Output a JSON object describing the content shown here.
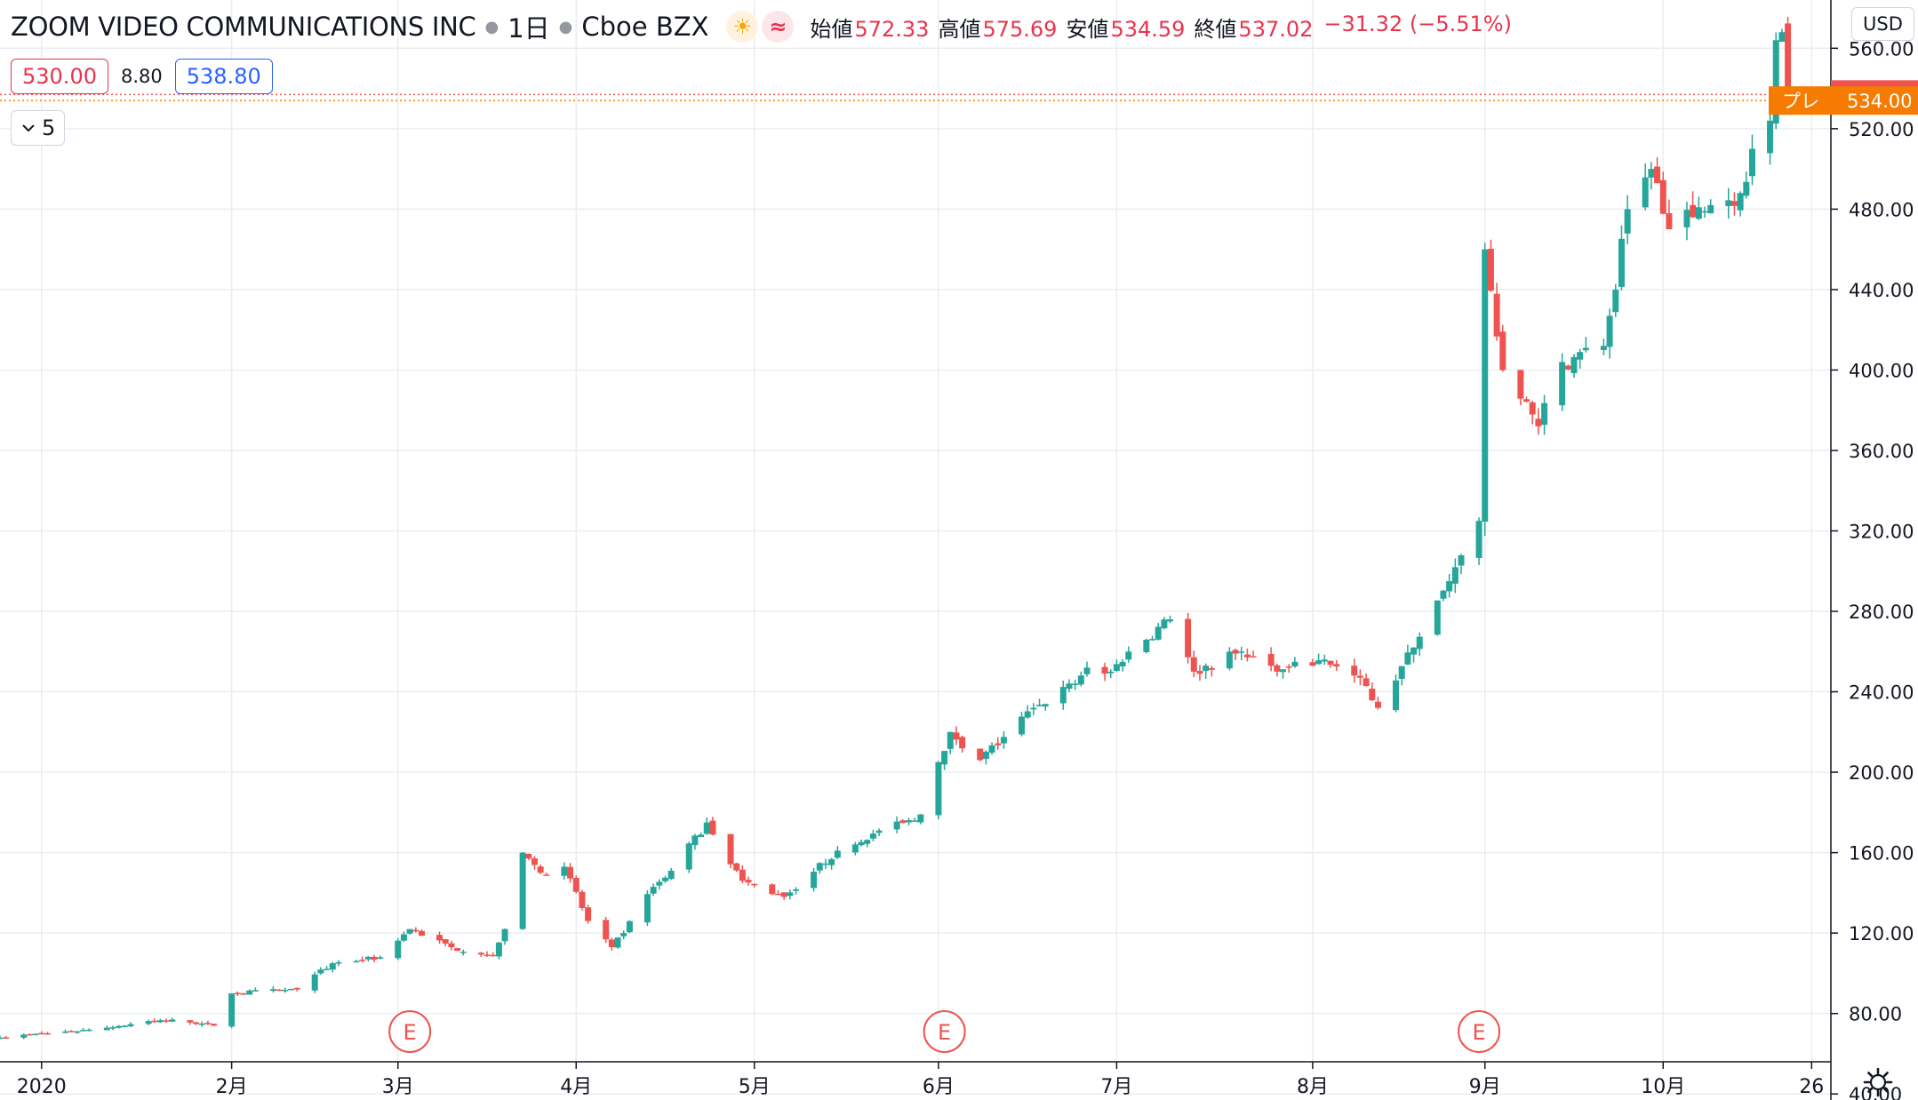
{
  "header": {
    "symbol": "ZOOM VIDEO COMMUNICATIONS INC",
    "interval": "1日",
    "exchange": "Cboe BZX",
    "ohlc": [
      {
        "label": "始値",
        "value": "572.33"
      },
      {
        "label": "高値",
        "value": "575.69"
      },
      {
        "label": "安値",
        "value": "534.59"
      },
      {
        "label": "終値",
        "value": "537.02"
      }
    ],
    "change": "−31.32 (−5.51%)"
  },
  "quote": {
    "bid": "530.00",
    "spread": "8.80",
    "ask": "538.80"
  },
  "indicator_toggle": "5",
  "currency": "USD",
  "colors": {
    "up": "#26a69a",
    "down": "#ef5350",
    "accent": "#f57c00",
    "grid": "#e9eef2"
  },
  "chart_data": {
    "type": "candlestick",
    "ylim": [
      37,
      584
    ],
    "y_ticks": [
      40,
      80,
      120,
      160,
      200,
      240,
      280,
      320,
      360,
      400,
      440,
      480,
      520,
      560
    ],
    "y_tick_labels": [
      "40.00",
      "80.00",
      "120.00",
      "160.00",
      "200.00",
      "240.00",
      "280.00",
      "320.00",
      "360.00",
      "400.00",
      "440.00",
      "480.00",
      "520.00",
      "560.00"
    ],
    "x_range": [
      "2019-12-26",
      "2020-10-27"
    ],
    "x_ticks": [
      {
        "date": "2020-01-02",
        "label": "2020"
      },
      {
        "date": "2020-02-03",
        "label": "2月"
      },
      {
        "date": "2020-03-02",
        "label": "3月"
      },
      {
        "date": "2020-04-01",
        "label": "4月"
      },
      {
        "date": "2020-05-01",
        "label": "5月"
      },
      {
        "date": "2020-06-01",
        "label": "6月"
      },
      {
        "date": "2020-07-01",
        "label": "7月"
      },
      {
        "date": "2020-08-03",
        "label": "8月"
      },
      {
        "date": "2020-09-01",
        "label": "9月"
      },
      {
        "date": "2020-10-01",
        "label": "10月"
      },
      {
        "date": "2020-10-26",
        "label": "26"
      }
    ],
    "grid": true,
    "earnings_markers": [
      {
        "date": "2020-03-04",
        "label": "E"
      },
      {
        "date": "2020-06-02",
        "label": "E"
      },
      {
        "date": "2020-08-31",
        "label": "E"
      }
    ],
    "price_lines": [
      {
        "label": "",
        "value": "537.02",
        "price": 537.02,
        "color": "#ef5350"
      },
      {
        "label": "プレ",
        "value": "534.00",
        "price": 534.0,
        "color": "#f57c00"
      }
    ],
    "anchors": [
      [
        "2019-12-26",
        68
      ],
      [
        "2020-01-10",
        72
      ],
      [
        "2020-01-24",
        77
      ],
      [
        "2020-01-31",
        74
      ],
      [
        "2020-02-03",
        90
      ],
      [
        "2020-02-14",
        92
      ],
      [
        "2020-02-20",
        105
      ],
      [
        "2020-02-28",
        108
      ],
      [
        "2020-03-04",
        122
      ],
      [
        "2020-03-11",
        113
      ],
      [
        "2020-03-18",
        109
      ],
      [
        "2020-03-20",
        122
      ],
      [
        "2020-03-23",
        160
      ],
      [
        "2020-03-26",
        150
      ],
      [
        "2020-03-30",
        153
      ],
      [
        "2020-04-03",
        126
      ],
      [
        "2020-04-07",
        113
      ],
      [
        "2020-04-09",
        120
      ],
      [
        "2020-04-14",
        143
      ],
      [
        "2020-04-17",
        151
      ],
      [
        "2020-04-23",
        175
      ],
      [
        "2020-04-29",
        146
      ],
      [
        "2020-05-06",
        138
      ],
      [
        "2020-05-15",
        161
      ],
      [
        "2020-05-22",
        171
      ],
      [
        "2020-05-28",
        176
      ],
      [
        "2020-05-29",
        179
      ],
      [
        "2020-06-01",
        205
      ],
      [
        "2020-06-03",
        220
      ],
      [
        "2020-06-08",
        206
      ],
      [
        "2020-06-17",
        232
      ],
      [
        "2020-06-24",
        244
      ],
      [
        "2020-06-26",
        252
      ],
      [
        "2020-06-30",
        250
      ],
      [
        "2020-07-03",
        260
      ],
      [
        "2020-07-10",
        276
      ],
      [
        "2020-07-14",
        250
      ],
      [
        "2020-07-22",
        260
      ],
      [
        "2020-07-28",
        250
      ],
      [
        "2020-08-05",
        256
      ],
      [
        "2020-08-11",
        247
      ],
      [
        "2020-08-14",
        232
      ],
      [
        "2020-08-20",
        262
      ],
      [
        "2020-08-26",
        295
      ],
      [
        "2020-08-31",
        325
      ],
      [
        "2020-09-01",
        460
      ],
      [
        "2020-09-04",
        400
      ],
      [
        "2020-09-10",
        372
      ],
      [
        "2020-09-14",
        404
      ],
      [
        "2020-09-21",
        412
      ],
      [
        "2020-09-23",
        440
      ],
      [
        "2020-09-25",
        480
      ],
      [
        "2020-09-29",
        500
      ],
      [
        "2020-10-02",
        470
      ],
      [
        "2020-10-06",
        476
      ],
      [
        "2020-10-09",
        482
      ],
      [
        "2020-10-14",
        488
      ],
      [
        "2020-10-16",
        510
      ],
      [
        "2020-10-19",
        524
      ],
      [
        "2020-10-20",
        564
      ],
      [
        "2020-10-21",
        568
      ],
      [
        "2020-10-22",
        537.02
      ]
    ],
    "last_bar": {
      "date": "2020-10-22",
      "open": 572.33,
      "high": 575.69,
      "low": 534.59,
      "close": 537.02
    }
  }
}
